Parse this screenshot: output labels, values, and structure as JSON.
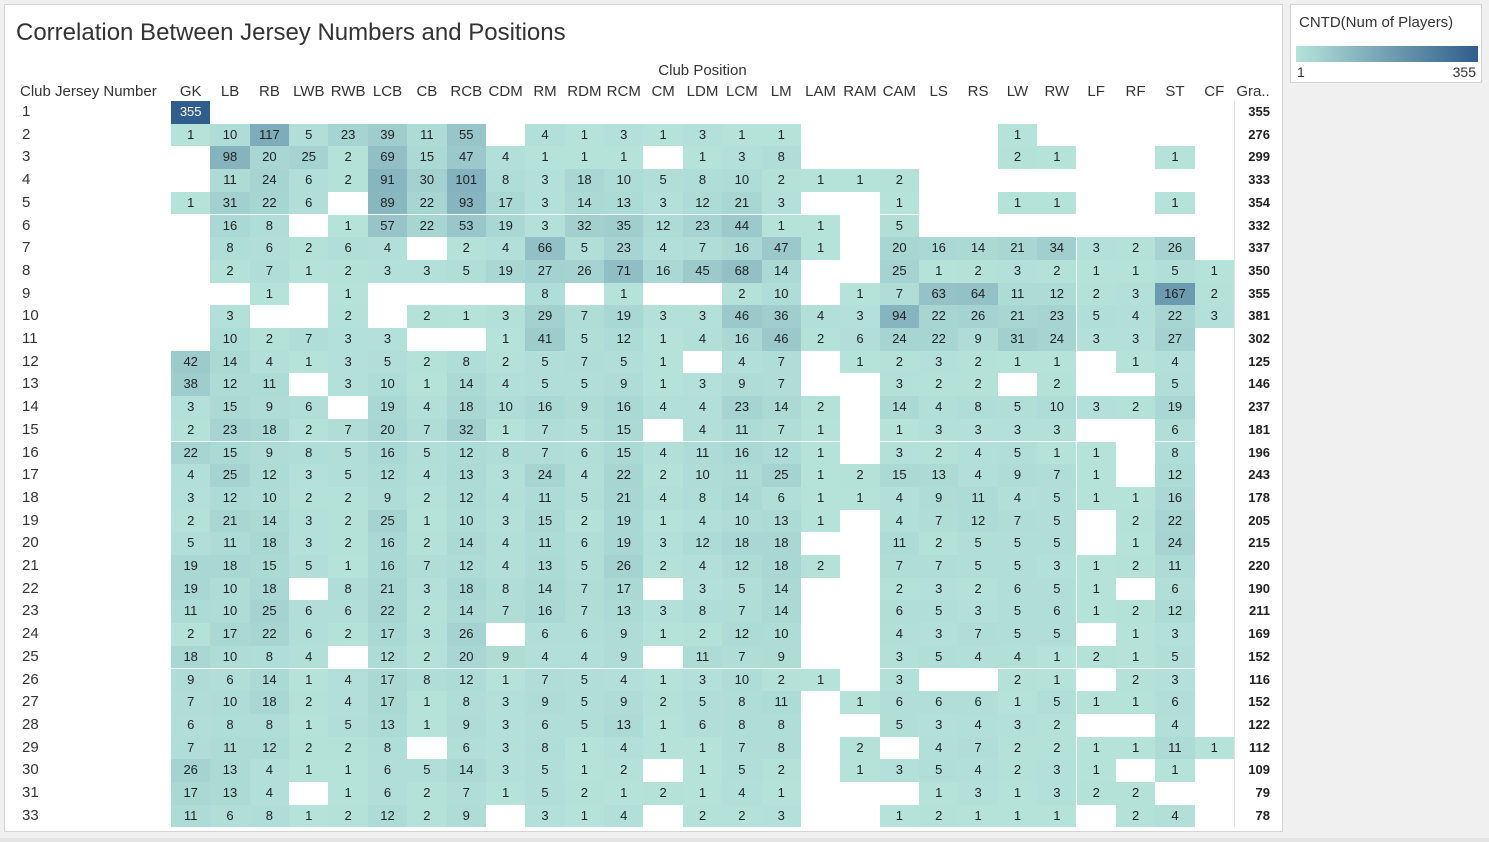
{
  "title": "Correlation Between Jersey Numbers and Positions",
  "chart_data": {
    "type": "heatmap",
    "title": "Correlation Between Jersey Numbers and Positions",
    "xlabel": "Club Position",
    "ylabel": "Club Jersey Number",
    "columns": [
      "GK",
      "LB",
      "RB",
      "LWB",
      "RWB",
      "LCB",
      "CB",
      "RCB",
      "CDM",
      "RM",
      "RDM",
      "RCM",
      "CM",
      "LDM",
      "LCM",
      "LM",
      "LAM",
      "RAM",
      "CAM",
      "LS",
      "RS",
      "LW",
      "RW",
      "LF",
      "RF",
      "ST",
      "CF"
    ],
    "total_label": "Gra..",
    "rows": [
      "1",
      "2",
      "3",
      "4",
      "5",
      "6",
      "7",
      "8",
      "9",
      "10",
      "11",
      "12",
      "13",
      "14",
      "15",
      "16",
      "17",
      "18",
      "19",
      "20",
      "21",
      "22",
      "23",
      "24",
      "25",
      "26",
      "27",
      "28",
      "29",
      "30",
      "31",
      "33"
    ],
    "values": [
      [
        355,
        null,
        null,
        null,
        null,
        null,
        null,
        null,
        null,
        null,
        null,
        null,
        null,
        null,
        null,
        null,
        null,
        null,
        null,
        null,
        null,
        null,
        null,
        null,
        null,
        null,
        null
      ],
      [
        1,
        10,
        117,
        5,
        23,
        39,
        11,
        55,
        null,
        4,
        1,
        3,
        1,
        3,
        1,
        1,
        null,
        null,
        null,
        null,
        null,
        1,
        null,
        null,
        null,
        null,
        null
      ],
      [
        null,
        98,
        20,
        25,
        2,
        69,
        15,
        47,
        4,
        1,
        1,
        1,
        null,
        1,
        3,
        8,
        null,
        null,
        null,
        null,
        null,
        2,
        1,
        null,
        null,
        1,
        null
      ],
      [
        null,
        11,
        24,
        6,
        2,
        91,
        30,
        101,
        8,
        3,
        18,
        10,
        5,
        8,
        10,
        2,
        1,
        1,
        2,
        null,
        null,
        null,
        null,
        null,
        null,
        null,
        null
      ],
      [
        1,
        31,
        22,
        6,
        null,
        89,
        22,
        93,
        17,
        3,
        14,
        13,
        3,
        12,
        21,
        3,
        null,
        null,
        1,
        null,
        null,
        1,
        1,
        null,
        null,
        1,
        null
      ],
      [
        null,
        16,
        8,
        null,
        1,
        57,
        22,
        53,
        19,
        3,
        32,
        35,
        12,
        23,
        44,
        1,
        1,
        null,
        5,
        null,
        null,
        null,
        null,
        null,
        null,
        null,
        null
      ],
      [
        null,
        8,
        6,
        2,
        6,
        4,
        null,
        2,
        4,
        66,
        5,
        23,
        4,
        7,
        16,
        47,
        1,
        null,
        20,
        16,
        14,
        21,
        34,
        3,
        2,
        26,
        null
      ],
      [
        null,
        2,
        7,
        1,
        2,
        3,
        3,
        5,
        19,
        27,
        26,
        71,
        16,
        45,
        68,
        14,
        null,
        null,
        25,
        1,
        2,
        3,
        2,
        1,
        1,
        5,
        1
      ],
      [
        null,
        null,
        1,
        null,
        1,
        null,
        null,
        null,
        null,
        8,
        null,
        1,
        null,
        null,
        2,
        10,
        null,
        1,
        7,
        63,
        64,
        11,
        12,
        2,
        3,
        167,
        2
      ],
      [
        null,
        3,
        null,
        null,
        2,
        null,
        2,
        1,
        3,
        29,
        7,
        19,
        3,
        3,
        46,
        36,
        4,
        3,
        94,
        22,
        26,
        21,
        23,
        5,
        4,
        22,
        3
      ],
      [
        null,
        10,
        2,
        7,
        3,
        3,
        null,
        null,
        1,
        41,
        5,
        12,
        1,
        4,
        16,
        46,
        2,
        6,
        24,
        22,
        9,
        31,
        24,
        3,
        3,
        27,
        null
      ],
      [
        42,
        14,
        4,
        1,
        3,
        5,
        2,
        8,
        2,
        5,
        7,
        5,
        1,
        null,
        4,
        7,
        null,
        1,
        2,
        3,
        2,
        1,
        1,
        null,
        1,
        4,
        null
      ],
      [
        38,
        12,
        11,
        null,
        3,
        10,
        1,
        14,
        4,
        5,
        5,
        9,
        1,
        3,
        9,
        7,
        null,
        null,
        3,
        2,
        2,
        null,
        2,
        null,
        null,
        5,
        null
      ],
      [
        3,
        15,
        9,
        6,
        null,
        19,
        4,
        18,
        10,
        16,
        9,
        16,
        4,
        4,
        23,
        14,
        2,
        null,
        14,
        4,
        8,
        5,
        10,
        3,
        2,
        19,
        null
      ],
      [
        2,
        23,
        18,
        2,
        7,
        20,
        7,
        32,
        1,
        7,
        5,
        15,
        null,
        4,
        11,
        7,
        1,
        null,
        1,
        3,
        3,
        3,
        3,
        null,
        null,
        6,
        null
      ],
      [
        22,
        15,
        9,
        8,
        5,
        16,
        5,
        12,
        8,
        7,
        6,
        15,
        4,
        11,
        16,
        12,
        1,
        null,
        3,
        2,
        4,
        5,
        1,
        1,
        null,
        8,
        null
      ],
      [
        4,
        25,
        12,
        3,
        5,
        12,
        4,
        13,
        3,
        24,
        4,
        22,
        2,
        10,
        11,
        25,
        1,
        2,
        15,
        13,
        4,
        9,
        7,
        1,
        null,
        12,
        null
      ],
      [
        3,
        12,
        10,
        2,
        2,
        9,
        2,
        12,
        4,
        11,
        5,
        21,
        4,
        8,
        14,
        6,
        1,
        1,
        4,
        9,
        11,
        4,
        5,
        1,
        1,
        16,
        null
      ],
      [
        2,
        21,
        14,
        3,
        2,
        25,
        1,
        10,
        3,
        15,
        2,
        19,
        1,
        4,
        10,
        13,
        1,
        null,
        4,
        7,
        12,
        7,
        5,
        null,
        2,
        22,
        null
      ],
      [
        5,
        11,
        18,
        3,
        2,
        16,
        2,
        14,
        4,
        11,
        6,
        19,
        3,
        12,
        18,
        18,
        null,
        null,
        11,
        2,
        5,
        5,
        5,
        null,
        1,
        24,
        null
      ],
      [
        19,
        18,
        15,
        5,
        1,
        16,
        7,
        12,
        4,
        13,
        5,
        26,
        2,
        4,
        12,
        18,
        2,
        null,
        7,
        7,
        5,
        5,
        3,
        1,
        2,
        11,
        null
      ],
      [
        19,
        10,
        18,
        null,
        8,
        21,
        3,
        18,
        8,
        14,
        7,
        17,
        null,
        3,
        5,
        14,
        null,
        null,
        2,
        3,
        2,
        6,
        5,
        1,
        null,
        6,
        null
      ],
      [
        11,
        10,
        25,
        6,
        6,
        22,
        2,
        14,
        7,
        16,
        7,
        13,
        3,
        8,
        7,
        14,
        null,
        null,
        6,
        5,
        3,
        5,
        6,
        1,
        2,
        12,
        null
      ],
      [
        2,
        17,
        22,
        6,
        2,
        17,
        3,
        26,
        null,
        6,
        6,
        9,
        1,
        2,
        12,
        10,
        null,
        null,
        4,
        3,
        7,
        5,
        5,
        null,
        1,
        3,
        null
      ],
      [
        18,
        10,
        8,
        4,
        null,
        12,
        2,
        20,
        9,
        4,
        4,
        9,
        null,
        11,
        7,
        9,
        null,
        null,
        3,
        5,
        4,
        4,
        1,
        2,
        1,
        5,
        null
      ],
      [
        9,
        6,
        14,
        1,
        4,
        17,
        8,
        12,
        1,
        7,
        5,
        4,
        1,
        3,
        10,
        2,
        1,
        null,
        3,
        null,
        null,
        2,
        1,
        null,
        2,
        3,
        null
      ],
      [
        7,
        10,
        18,
        2,
        4,
        17,
        1,
        8,
        3,
        9,
        5,
        9,
        2,
        5,
        8,
        11,
        null,
        1,
        6,
        6,
        6,
        1,
        5,
        1,
        1,
        6,
        null
      ],
      [
        6,
        8,
        8,
        1,
        5,
        13,
        1,
        9,
        3,
        6,
        5,
        13,
        1,
        6,
        8,
        8,
        null,
        null,
        5,
        3,
        4,
        3,
        2,
        null,
        null,
        4,
        null
      ],
      [
        7,
        11,
        12,
        2,
        2,
        8,
        null,
        6,
        3,
        8,
        1,
        4,
        1,
        1,
        7,
        8,
        null,
        2,
        null,
        4,
        7,
        2,
        2,
        1,
        1,
        11,
        1
      ],
      [
        26,
        13,
        4,
        1,
        1,
        6,
        5,
        14,
        3,
        5,
        1,
        2,
        null,
        1,
        5,
        2,
        null,
        1,
        3,
        5,
        4,
        2,
        3,
        1,
        null,
        1,
        null
      ],
      [
        17,
        13,
        4,
        null,
        1,
        6,
        2,
        7,
        1,
        5,
        2,
        1,
        2,
        1,
        4,
        1,
        null,
        null,
        null,
        1,
        3,
        1,
        3,
        2,
        2,
        null,
        null
      ],
      [
        11,
        6,
        8,
        1,
        2,
        12,
        2,
        9,
        null,
        3,
        1,
        4,
        null,
        2,
        2,
        3,
        null,
        null,
        1,
        2,
        1,
        1,
        1,
        null,
        2,
        4,
        null
      ]
    ],
    "totals": [
      355,
      276,
      299,
      333,
      354,
      332,
      337,
      350,
      355,
      381,
      302,
      125,
      146,
      237,
      181,
      196,
      243,
      178,
      205,
      215,
      220,
      190,
      211,
      169,
      152,
      116,
      152,
      122,
      112,
      109,
      79,
      78
    ],
    "color_scale": {
      "label": "CNTD(Num of Players)",
      "min": 1,
      "max": 355,
      "min_color": "#b5e3da",
      "max_color": "#2f5d8c"
    }
  }
}
